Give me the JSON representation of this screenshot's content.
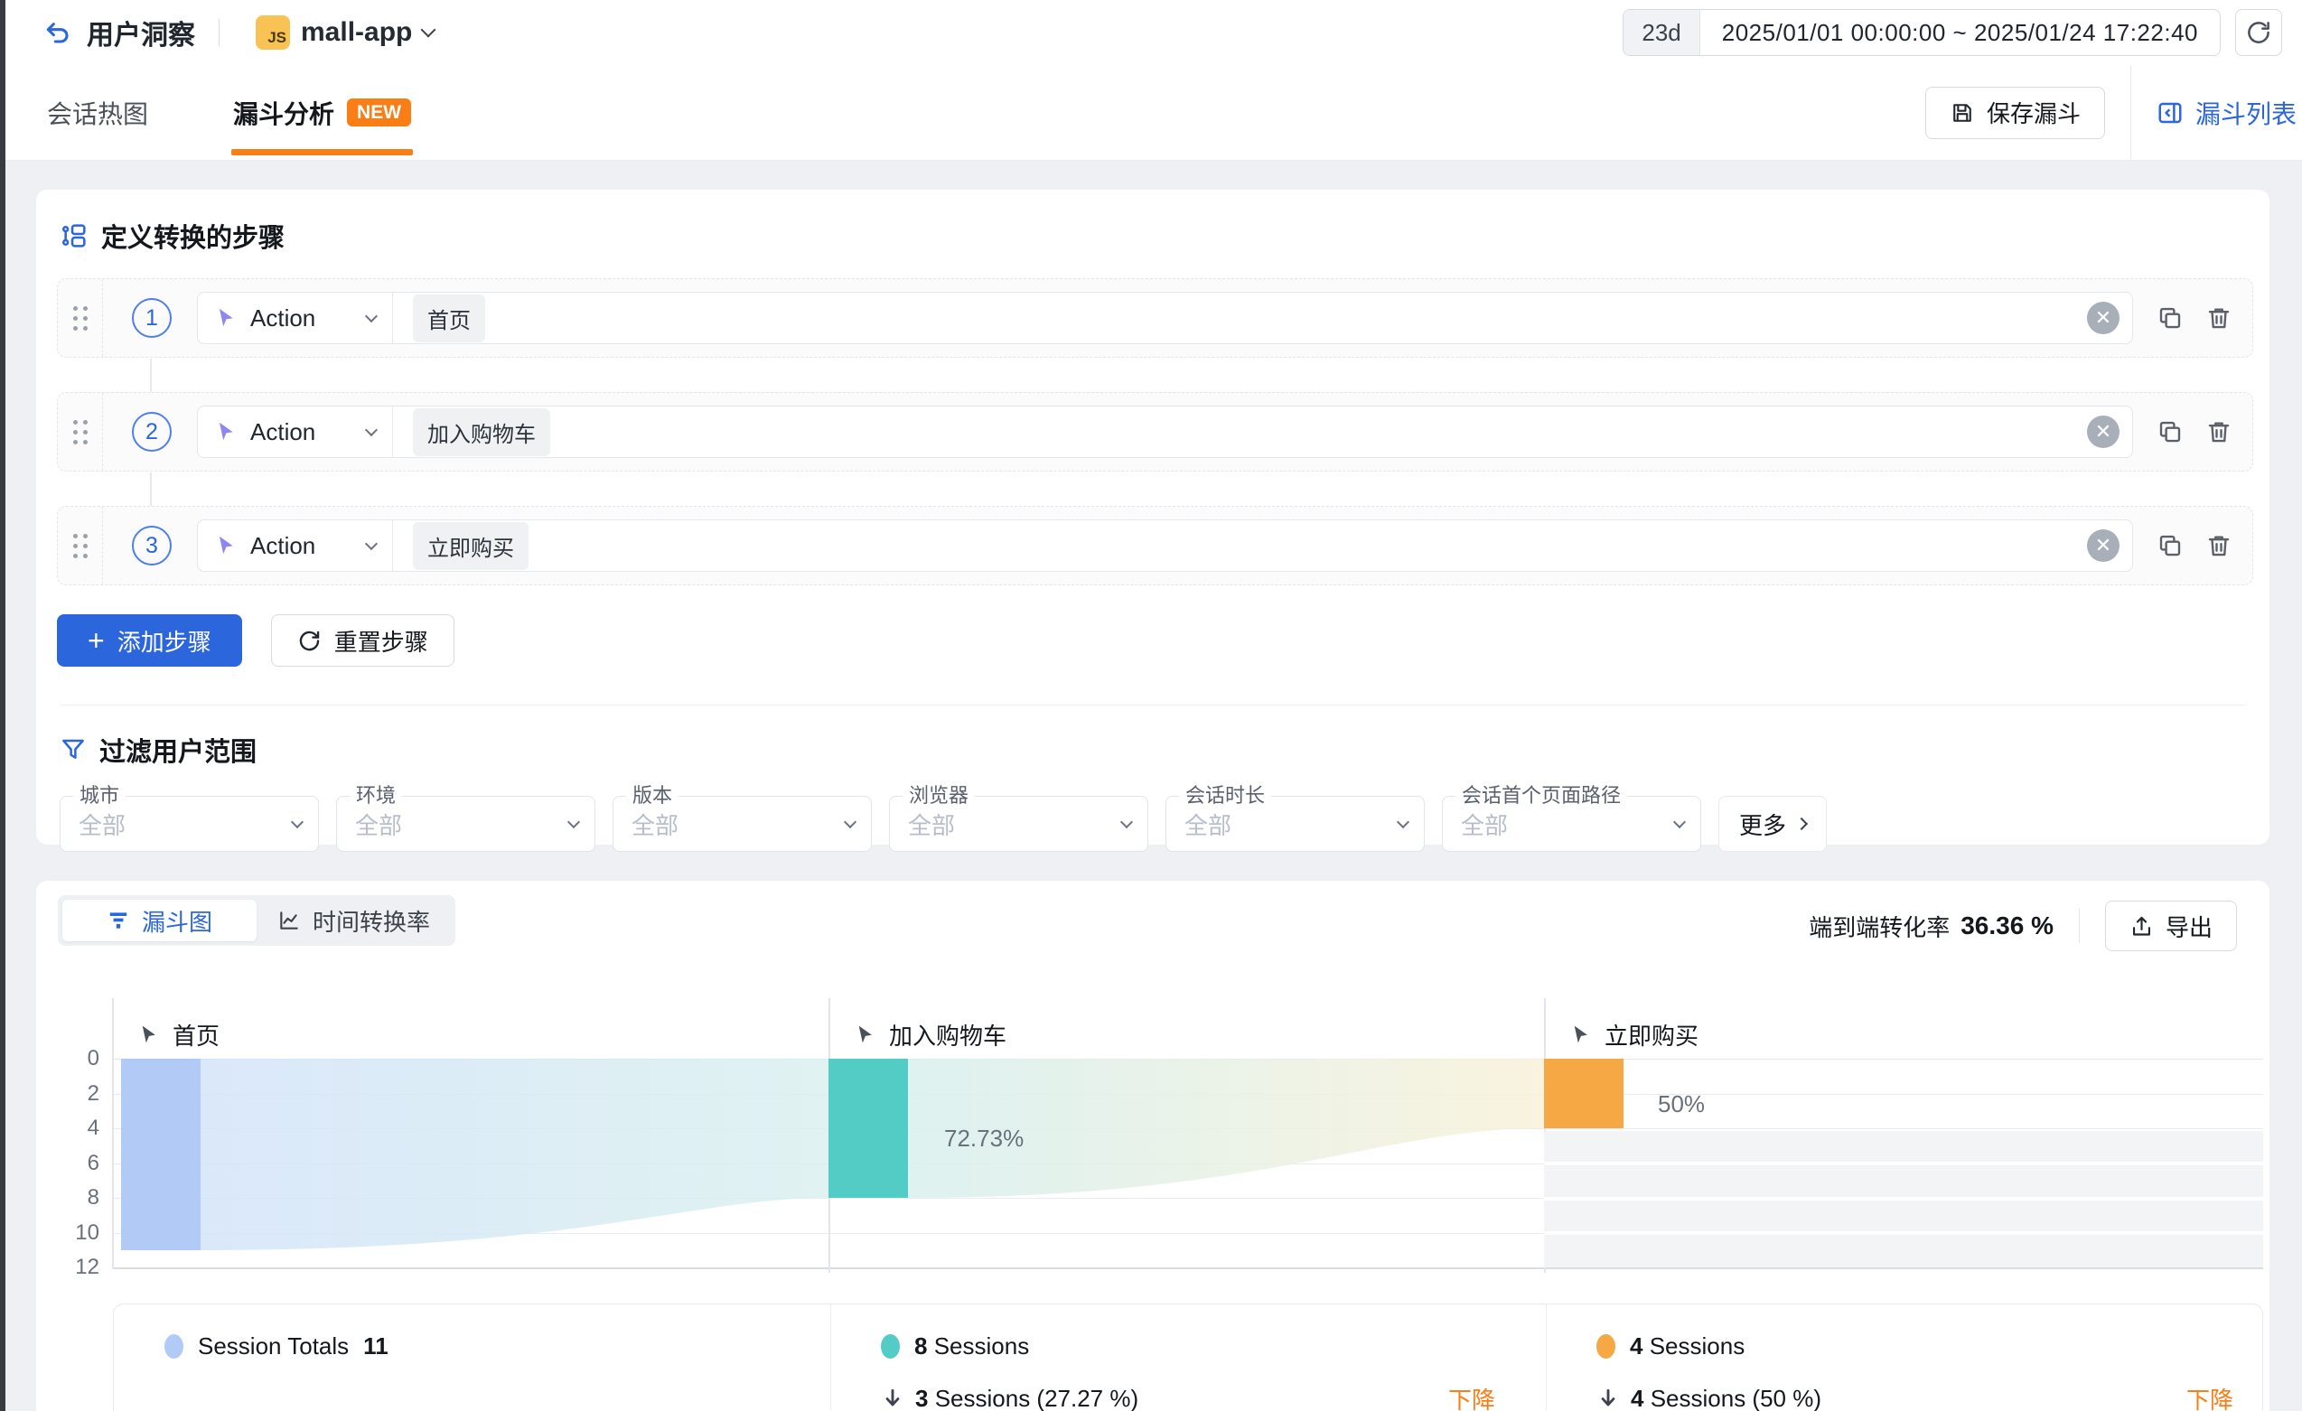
{
  "topbar": {
    "title": "用户洞察",
    "app": {
      "badge": "JS",
      "name": "mall-app"
    },
    "date_range": {
      "duration": "23d",
      "range": "2025/01/01 00:00:00 ~ 2025/01/24 17:22:40"
    }
  },
  "tabs": {
    "heatmap": "会话热图",
    "funnel": "漏斗分析",
    "funnel_badge": "NEW",
    "save_button": "保存漏斗",
    "funnel_list_button": "漏斗列表"
  },
  "steps_section": {
    "title": "定义转换的步骤",
    "steps": [
      {
        "number": "1",
        "type": "Action",
        "event": "首页"
      },
      {
        "number": "2",
        "type": "Action",
        "event": "加入购物车"
      },
      {
        "number": "3",
        "type": "Action",
        "event": "立即购买"
      }
    ],
    "add_button": "添加步骤",
    "reset_button": "重置步骤"
  },
  "filter_section": {
    "title": "过滤用户范围",
    "filters": [
      {
        "label": "城市",
        "value": "全部"
      },
      {
        "label": "环境",
        "value": "全部"
      },
      {
        "label": "版本",
        "value": "全部"
      },
      {
        "label": "浏览器",
        "value": "全部"
      },
      {
        "label": "会话时长",
        "value": "全部"
      },
      {
        "label": "会话首个页面路径",
        "value": "全部"
      }
    ],
    "more_button": "更多"
  },
  "chart_section": {
    "funnel_view_tab": "漏斗图",
    "time_view_tab": "时间转换率",
    "conversion_label": "端到端转化率",
    "conversion_value": "36.36 %",
    "export_button": "导出"
  },
  "chart_data": {
    "type": "funnel",
    "title": "漏斗图",
    "categories": [
      "首页",
      "加入购物车",
      "立即购买"
    ],
    "values": [
      11,
      8,
      4
    ],
    "conversion_rates": [
      "",
      "72.73%",
      "50%"
    ],
    "end_to_end_rate": "36.36 %",
    "yticks": [
      0,
      2,
      4,
      6,
      8,
      10,
      12
    ],
    "ylim": [
      0,
      12
    ],
    "y_inverted": true,
    "grid": true,
    "bar_colors": [
      "#b2cbf6",
      "#54ccc6",
      "#f5a843"
    ]
  },
  "summary": {
    "columns": [
      {
        "label": "Session Totals",
        "value": "11"
      },
      {
        "count": "8",
        "unit": "Sessions",
        "drop_count": "3",
        "drop_detail": "Sessions (27.27 %)",
        "drop_tag": "下降"
      },
      {
        "count": "4",
        "unit": "Sessions",
        "drop_count": "4",
        "drop_detail": "Sessions (50 %)",
        "drop_tag": "下降"
      }
    ]
  },
  "colors": {
    "accent_blue": "#2b66dd",
    "accent_orange": "#fb7d15",
    "bar_home": "#b2cbf6",
    "bar_cart": "#54ccc6",
    "bar_buy": "#f5a843"
  }
}
